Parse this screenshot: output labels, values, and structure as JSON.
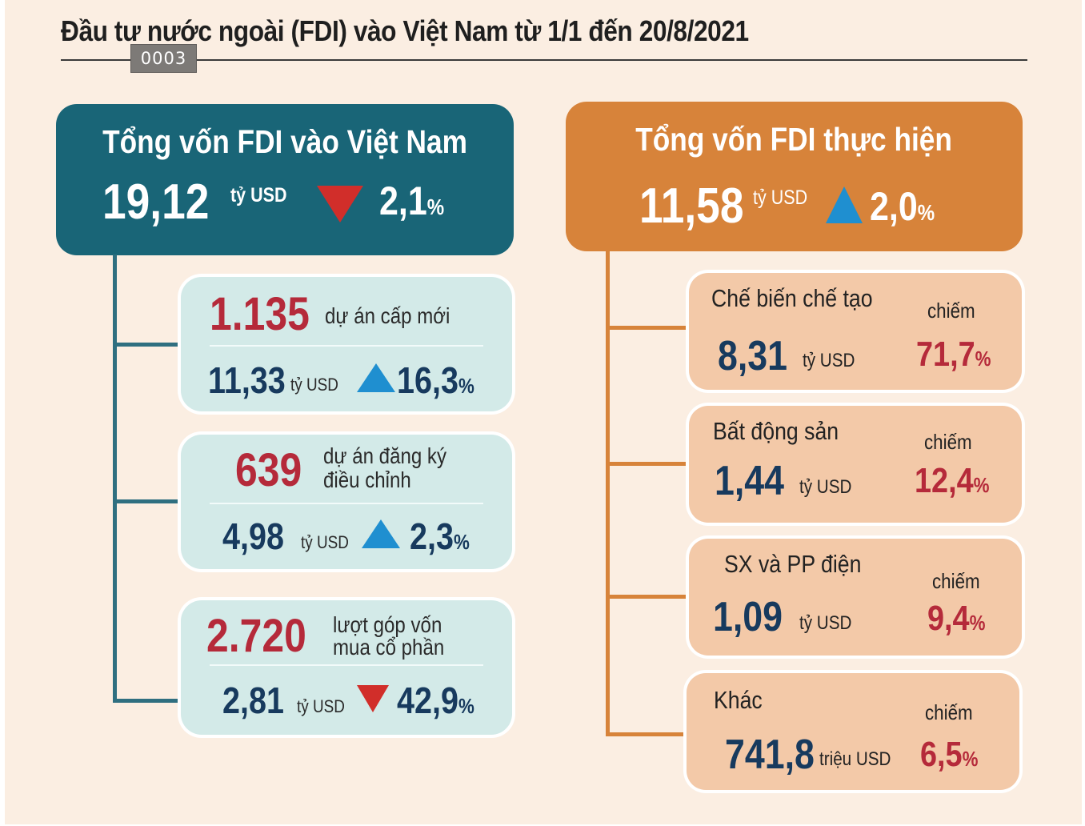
{
  "title": "Đầu tư nước ngoài (FDI) vào Việt Nam từ 1/1 đến 20/8/2021",
  "stamp": "0003",
  "colors": {
    "teal_header": "#196577",
    "orange_header": "#d7833a",
    "card_teal": "#d3eae8",
    "card_orange": "#f3c9a8",
    "up_arrow": "#1f8fd0",
    "down_arrow": "#d12e2a",
    "highlight_red": "#b52a3a",
    "navy_text": "#173a5e"
  },
  "left": {
    "header_title": "Tổng vốn FDI vào Việt Nam",
    "value": "19,12",
    "unit": "tỷ USD",
    "trend": "down",
    "change": "2,1",
    "percent_sign": "%",
    "cards": [
      {
        "count": "1.135",
        "desc_line1": "dự án cấp mới",
        "desc_line2": "",
        "value": "11,33",
        "unit": "tỷ USD",
        "trend": "up",
        "change": "16,3",
        "percent_sign": "%"
      },
      {
        "count": "639",
        "desc_line1": "dự án đăng ký",
        "desc_line2": "điều chỉnh",
        "value": "4,98",
        "unit": "tỷ USD",
        "trend": "up",
        "change": "2,3",
        "percent_sign": "%"
      },
      {
        "count": "2.720",
        "desc_line1": "lượt góp vốn",
        "desc_line2": "mua cổ phần",
        "value": "2,81",
        "unit": "tỷ USD",
        "trend": "down",
        "change": "42,9",
        "percent_sign": "%"
      }
    ]
  },
  "right": {
    "header_title": "Tổng vốn FDI thực hiện",
    "value": "11,58",
    "unit": "tỷ USD",
    "trend": "up",
    "change": "2,0",
    "percent_sign": "%",
    "cards": [
      {
        "label": "Chế biến chế tạo",
        "chiem": "chiếm",
        "value": "8,31",
        "unit": "tỷ USD",
        "share": "71,7",
        "percent_sign": "%"
      },
      {
        "label": "Bất động sản",
        "chiem": "chiếm",
        "value": "1,44",
        "unit": "tỷ USD",
        "share": "12,4",
        "percent_sign": "%"
      },
      {
        "label": "SX và PP điện",
        "chiem": "chiếm",
        "value": "1,09",
        "unit": "tỷ USD",
        "share": "9,4",
        "percent_sign": "%"
      },
      {
        "label": "Khác",
        "chiem": "chiếm",
        "value": "741,8",
        "unit": "triệu USD",
        "share": "6,5",
        "percent_sign": "%"
      }
    ]
  }
}
